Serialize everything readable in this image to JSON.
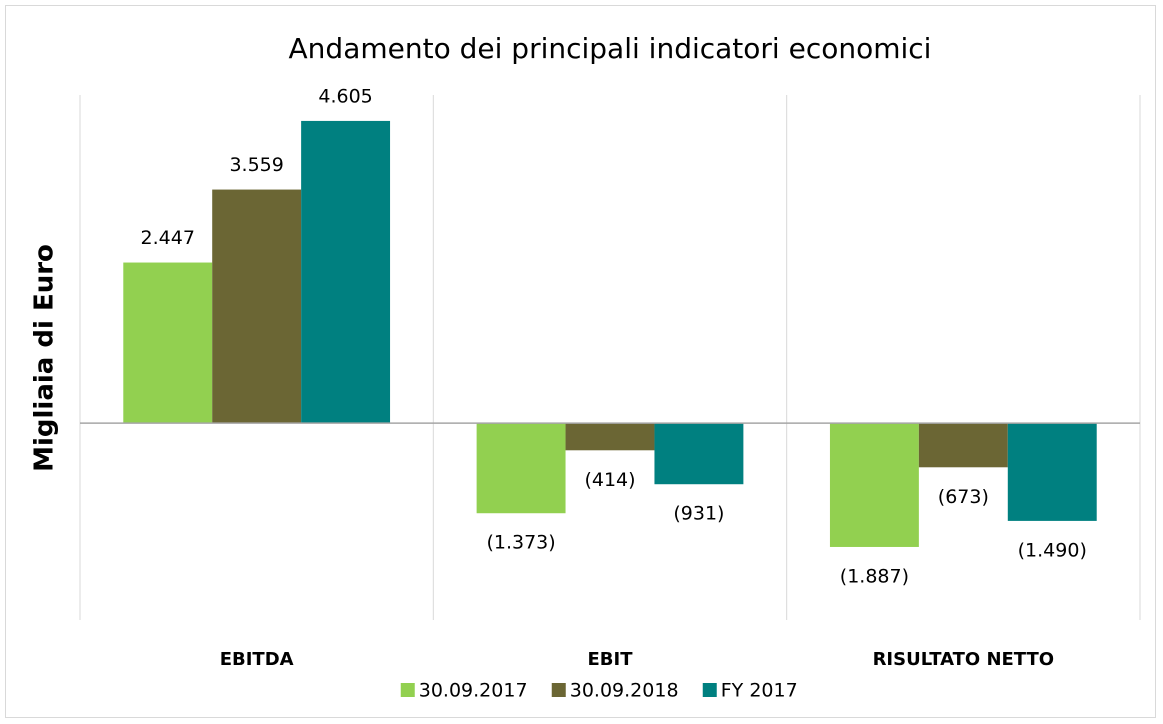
{
  "chart_data": {
    "type": "bar",
    "title": "Andamento dei principali indicatori economici",
    "y_label": "Migliaia di Euro",
    "categories": [
      "EBITDA",
      "EBIT",
      "RISULTATO NETTO"
    ],
    "series": [
      {
        "name": "30.09.2017",
        "color": "#92d050",
        "values": [
          2447,
          -1373,
          -1887
        ],
        "value_labels": [
          "2.447",
          "(1.373)",
          "(1.887)"
        ]
      },
      {
        "name": "30.09.2018",
        "color": "#6b6634",
        "values": [
          3559,
          -414,
          -673
        ],
        "value_labels": [
          "3.559",
          "(414)",
          "(673)"
        ]
      },
      {
        "name": "FY 2017",
        "color": "#008080",
        "values": [
          4605,
          -931,
          -1490
        ],
        "value_labels": [
          "4.605",
          "(931)",
          "(1.490)"
        ]
      }
    ],
    "ylim": [
      -3000,
      5000
    ],
    "legend": "bottom"
  }
}
